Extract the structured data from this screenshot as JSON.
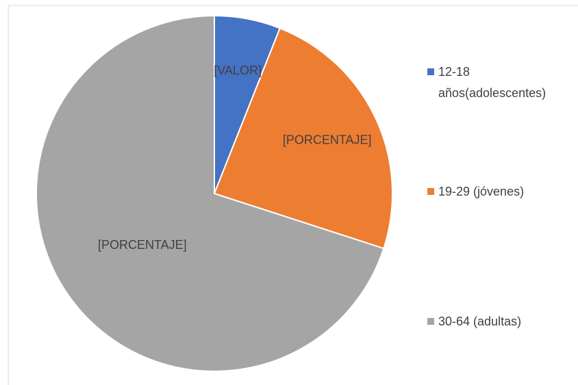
{
  "chart_data": {
    "type": "pie",
    "categories": [
      "12-18 años(adolescentes)",
      "19-29 (jóvenes)",
      "30-64 (adultas)"
    ],
    "values": [
      6,
      24,
      70
    ],
    "value_labels": [
      "[VALOR]",
      "[PORCENTAJE]",
      "[PORCENTAJE]"
    ],
    "colors": [
      "#4472c4",
      "#ed7d31",
      "#a5a5a5"
    ],
    "legend": "right"
  }
}
